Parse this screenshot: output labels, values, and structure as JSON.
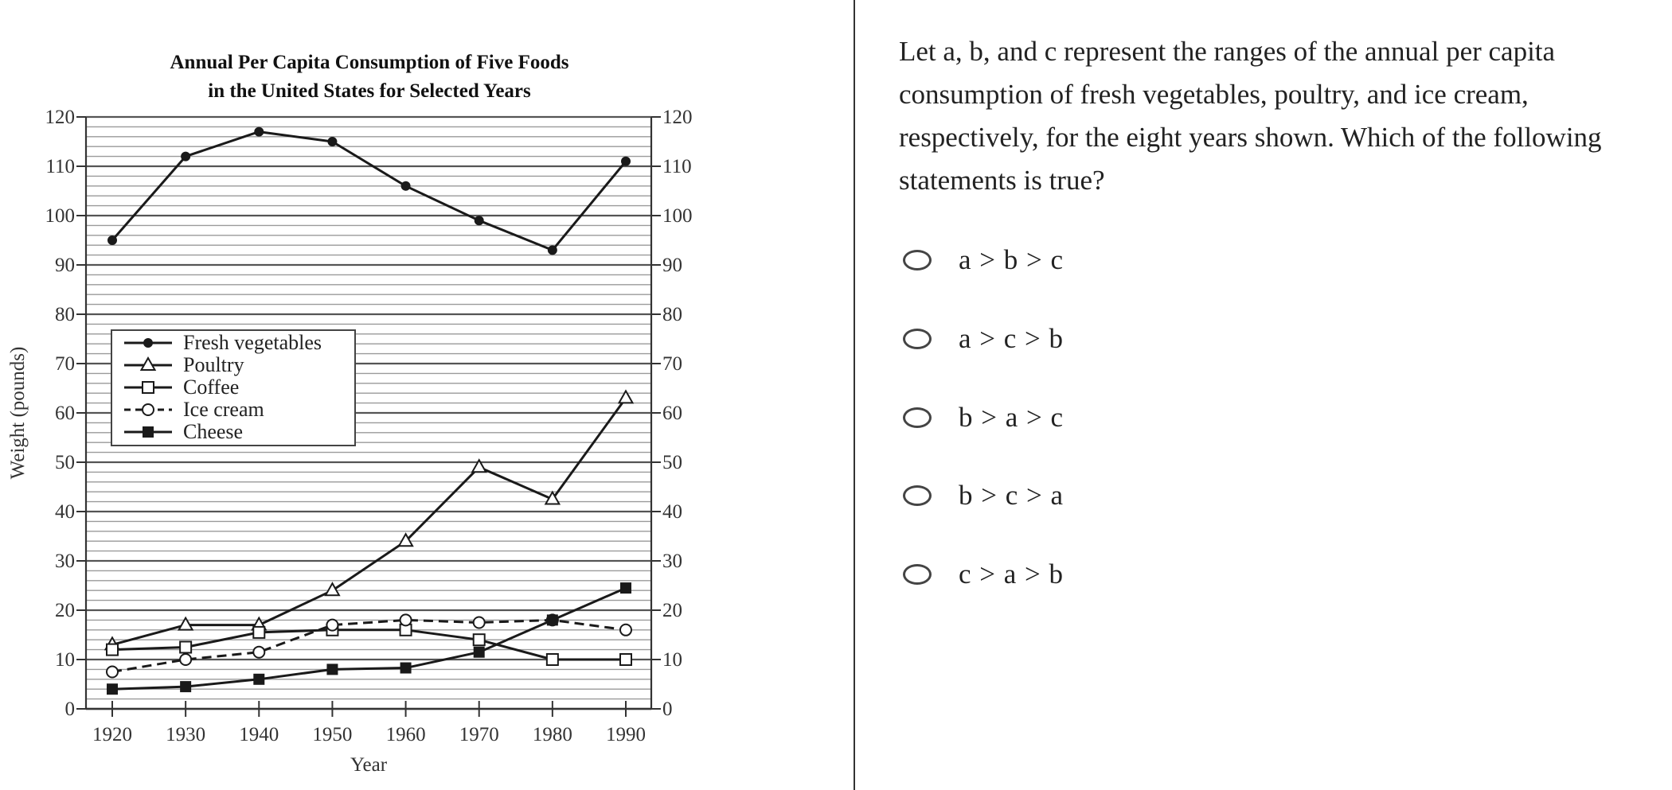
{
  "question": {
    "text": "Let a, b, and c represent the ranges of the annual per capita consumption of fresh vegetables, poultry, and ice cream, respectively, for the eight years shown. Which of the following statements is true?",
    "options": [
      {
        "label": "a > b > c"
      },
      {
        "label": "a > c > b"
      },
      {
        "label": "b > a > c"
      },
      {
        "label": "b > c > a"
      },
      {
        "label": "c > a > b"
      }
    ]
  },
  "chart": {
    "title_line1": "Annual Per Capita Consumption of Five Foods",
    "title_line2": "in the United States for Selected Years",
    "ylabel": "Weight (pounds)",
    "xlabel": "Year"
  },
  "chart_data": {
    "type": "line",
    "title": "Annual Per Capita Consumption of Five Foods in the United States for Selected Years",
    "xlabel": "Year",
    "ylabel": "Weight (pounds)",
    "x": [
      1920,
      1930,
      1940,
      1950,
      1960,
      1970,
      1980,
      1990
    ],
    "categories": [
      "1920",
      "1930",
      "1940",
      "1950",
      "1960",
      "1970",
      "1980",
      "1990"
    ],
    "ylim": [
      0,
      120
    ],
    "yticks": [
      0,
      10,
      20,
      30,
      40,
      50,
      60,
      70,
      80,
      90,
      100,
      110,
      120
    ],
    "minor_grid_step": 2,
    "grid": true,
    "legend_position": "upper-left (inside plot, around y=60-80)",
    "series": [
      {
        "name": "Fresh vegetables",
        "marker": "filled-circle",
        "line": "solid",
        "values": [
          95,
          112,
          117,
          115,
          106,
          99,
          93,
          111
        ]
      },
      {
        "name": "Poultry",
        "marker": "open-triangle",
        "line": "solid",
        "values": [
          13,
          17,
          17,
          24,
          34,
          49,
          42.5,
          63
        ]
      },
      {
        "name": "Coffee",
        "marker": "open-square",
        "line": "solid",
        "values": [
          12,
          12.5,
          15.5,
          16,
          16,
          14,
          10,
          10
        ]
      },
      {
        "name": "Ice cream",
        "marker": "open-circle",
        "line": "dashed",
        "values": [
          7.5,
          10,
          11.5,
          17,
          18,
          17.5,
          18,
          16
        ]
      },
      {
        "name": "Cheese",
        "marker": "filled-square",
        "line": "solid",
        "values": [
          4,
          4.5,
          6,
          8,
          8.3,
          11.5,
          18,
          24.5
        ]
      }
    ]
  },
  "colors": {
    "line": "#1a1a1a",
    "grid_major": "#555555",
    "grid_minor": "#9a9a9a",
    "divider": "#333333"
  }
}
